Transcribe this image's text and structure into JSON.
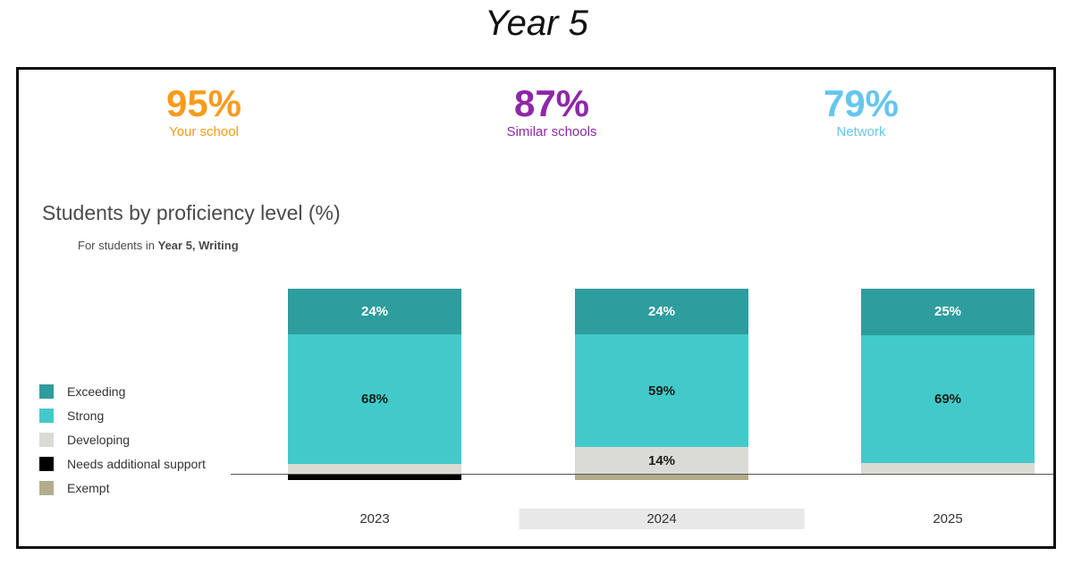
{
  "page_title": "Year 5",
  "summary_stats": [
    {
      "value": "95%",
      "label": "Your school",
      "color": "#F89B1C"
    },
    {
      "value": "87%",
      "label": "Similar schools",
      "color": "#8E27A8"
    },
    {
      "value": "79%",
      "label": "Network",
      "color": "#66C5EE"
    }
  ],
  "chart": {
    "title": "Students by proficiency level (%)",
    "subtitle_prefix": "For students in ",
    "subtitle_bold": "Year 5, Writing"
  },
  "chart_data": {
    "type": "bar",
    "stacked": true,
    "unit": "percent of students",
    "categories": [
      "2023",
      "2024",
      "2025"
    ],
    "highlighted_category": "2024",
    "legend_position": "left",
    "axis_color": "#555555",
    "category_highlight_color": "#E8E8E8",
    "series": [
      {
        "name": "Exceeding",
        "color": "#2E9D9D",
        "label_text_color": "#FFFFFF",
        "below_axis": false,
        "values": [
          24,
          24,
          25
        ],
        "data_labels": [
          "24%",
          "24%",
          "25%"
        ]
      },
      {
        "name": "Strong",
        "color": "#42CACA",
        "label_text_color": "#1A1A1A",
        "below_axis": false,
        "values": [
          68,
          59,
          69
        ],
        "data_labels": [
          "68%",
          "59%",
          "69%"
        ]
      },
      {
        "name": "Developing",
        "color": "#DBDBD5",
        "label_text_color": "#1A1A1A",
        "below_axis": false,
        "values": [
          5,
          14,
          6
        ],
        "data_labels": [
          "",
          "14%",
          ""
        ]
      },
      {
        "name": "Needs additional support",
        "color": "#000000",
        "label_text_color": "#FFFFFF",
        "below_axis": true,
        "values": [
          3,
          0,
          0
        ],
        "data_labels": [
          "",
          "",
          ""
        ]
      },
      {
        "name": "Exempt",
        "color": "#B3AC8C",
        "label_text_color": "#1A1A1A",
        "below_axis": true,
        "values": [
          0,
          3,
          0
        ],
        "data_labels": [
          "",
          "",
          ""
        ]
      }
    ]
  }
}
